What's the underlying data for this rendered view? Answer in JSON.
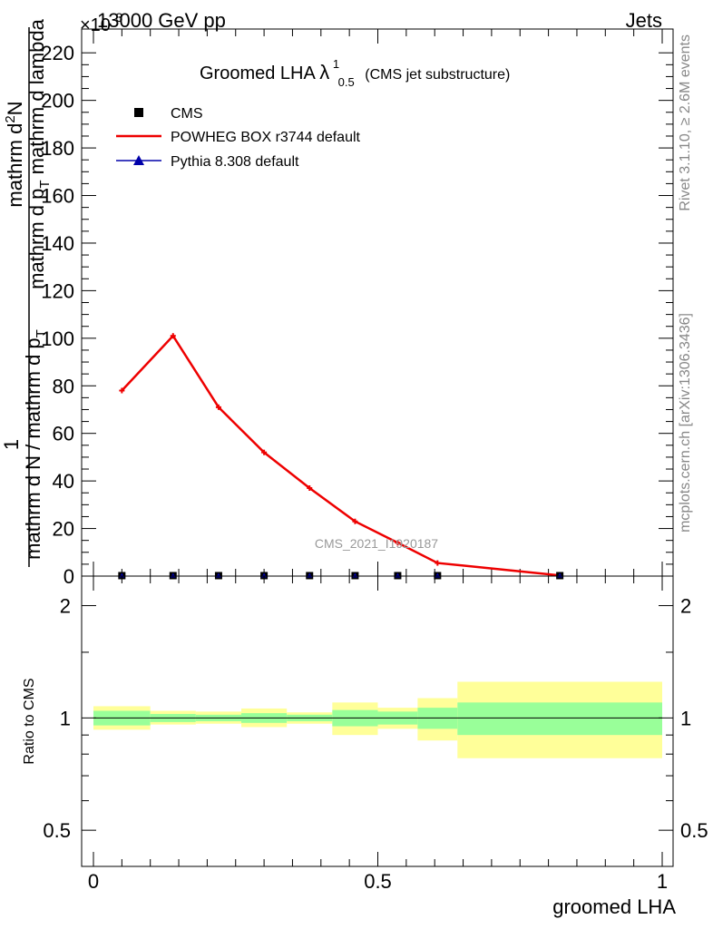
{
  "header": {
    "left": "13000 GeV pp",
    "right": "Jets",
    "exponent": "×10",
    "exponent_power": "3"
  },
  "chart_data": {
    "type": "line",
    "title_main": "Groomed LHA",
    "title_lambda": "λ",
    "title_sup": "1",
    "title_sub": "0.5",
    "title_note": "(CMS jet substructure)",
    "ylabel": "1 / mathrm d N / mathrm d p_T mathrm d^2N / mathrm d p_T mathrm d lambda",
    "ylabel_parts": {
      "inv_num": "1",
      "inv_den": "mathrm d N / mathrm d p",
      "inv_sub": "T",
      "frac_num": "mathrm d",
      "frac_num_sup": "2",
      "frac_num_end": "N",
      "frac_den": "mathrm d p",
      "frac_den_sub": "T",
      "frac_den_end": " mathrm d lambda"
    },
    "xlabel": "groomed LHA",
    "ratio_ylabel": "Ratio to CMS",
    "xlim": [
      0,
      1
    ],
    "ylim": [
      0,
      230
    ],
    "yticks": [
      0,
      20,
      40,
      60,
      80,
      100,
      120,
      140,
      160,
      180,
      200,
      220
    ],
    "xticks": [
      0,
      0.5,
      1
    ],
    "xtick_labels": [
      "0",
      "0.5",
      "1"
    ],
    "ratio_ylim": [
      0.4,
      2.4
    ],
    "ratio_yticks": [
      0.5,
      1,
      2
    ],
    "ratio_ytick_labels": [
      "0.5",
      "1",
      "2"
    ],
    "legend_position": "top-left",
    "legend": [
      {
        "name": "CMS",
        "marker": "square",
        "color": "#000000"
      },
      {
        "name": "POWHEG BOX r3744 default",
        "marker": "line",
        "color": "#ee0000"
      },
      {
        "name": "Pythia 8.308 default",
        "marker": "triangle",
        "color": "#0000aa"
      }
    ],
    "series": [
      {
        "name": "POWHEG BOX r3744 default",
        "color": "#ee0000",
        "x": [
          0.05,
          0.14,
          0.22,
          0.3,
          0.38,
          0.46,
          0.535,
          0.605,
          0.82
        ],
        "y": [
          78,
          101,
          71,
          52,
          37,
          23,
          14,
          5.5,
          0.3
        ]
      },
      {
        "name": "CMS",
        "color": "#000000",
        "x": [
          0.05,
          0.14,
          0.22,
          0.3,
          0.38,
          0.46,
          0.535,
          0.605,
          0.82
        ],
        "y": [
          0.2,
          0.2,
          0.2,
          0.2,
          0.2,
          0.2,
          0.2,
          0.2,
          0.2
        ]
      }
    ],
    "ratio_bands": [
      {
        "x0": 0.0,
        "x1": 0.1,
        "inner": [
          0.955,
          1.045
        ],
        "outer": [
          0.93,
          1.075
        ]
      },
      {
        "x0": 0.1,
        "x1": 0.18,
        "inner": [
          0.975,
          1.025
        ],
        "outer": [
          0.96,
          1.045
        ]
      },
      {
        "x0": 0.18,
        "x1": 0.26,
        "inner": [
          0.98,
          1.02
        ],
        "outer": [
          0.965,
          1.04
        ]
      },
      {
        "x0": 0.26,
        "x1": 0.34,
        "inner": [
          0.97,
          1.03
        ],
        "outer": [
          0.945,
          1.06
        ]
      },
      {
        "x0": 0.34,
        "x1": 0.42,
        "inner": [
          0.98,
          1.02
        ],
        "outer": [
          0.965,
          1.035
        ]
      },
      {
        "x0": 0.42,
        "x1": 0.5,
        "inner": [
          0.95,
          1.05
        ],
        "outer": [
          0.9,
          1.1
        ]
      },
      {
        "x0": 0.5,
        "x1": 0.57,
        "inner": [
          0.96,
          1.04
        ],
        "outer": [
          0.935,
          1.065
        ]
      },
      {
        "x0": 0.57,
        "x1": 0.64,
        "inner": [
          0.935,
          1.065
        ],
        "outer": [
          0.87,
          1.13
        ]
      },
      {
        "x0": 0.64,
        "x1": 1.0,
        "inner": [
          0.9,
          1.1
        ],
        "outer": [
          0.78,
          1.25
        ]
      }
    ]
  },
  "side": {
    "rivet": "Rivet 3.1.10, ≥ 2.6M events",
    "mcplots": "mcplots.cern.ch [arXiv:1306.3436]"
  },
  "watermark": "CMS_2021_I1920187",
  "colors": {
    "band_inner": "#99ff99",
    "band_outer": "#ffff99",
    "powheg": "#ee0000",
    "pythia": "#0000aa"
  }
}
